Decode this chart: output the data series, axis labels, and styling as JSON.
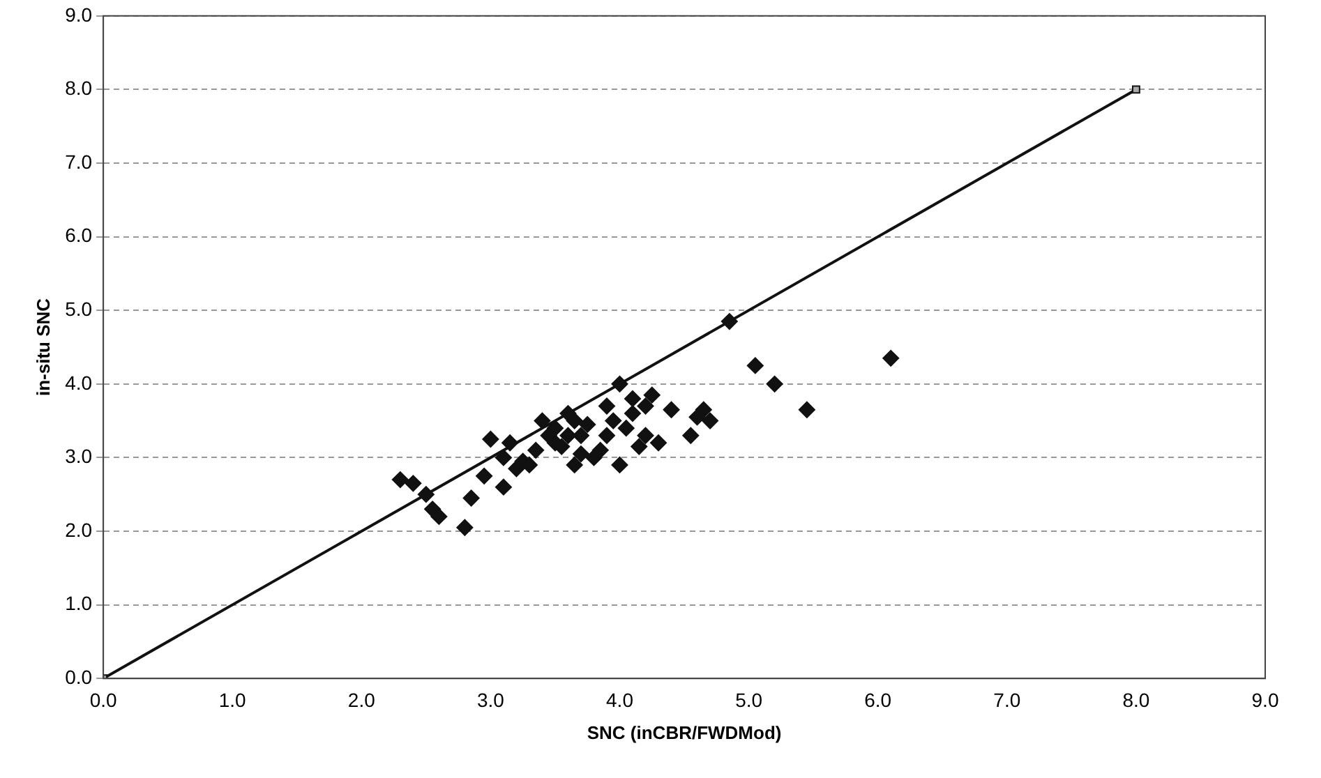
{
  "chart_data": {
    "type": "scatter",
    "xlabel": "SNC (inCBR/FWDMod)",
    "ylabel": "in-situ SNC",
    "xlim": [
      0,
      9
    ],
    "ylim": [
      0,
      9
    ],
    "xticks": [
      {
        "value": 0,
        "label": "0.0"
      },
      {
        "value": 1,
        "label": "1.0"
      },
      {
        "value": 2,
        "label": "2.0"
      },
      {
        "value": 3,
        "label": "3.0"
      },
      {
        "value": 4,
        "label": "4.0"
      },
      {
        "value": 5,
        "label": "5.0"
      },
      {
        "value": 6,
        "label": "6.0"
      },
      {
        "value": 7,
        "label": "7.0"
      },
      {
        "value": 8,
        "label": "8.0"
      },
      {
        "value": 9,
        "label": "9.0"
      }
    ],
    "yticks": [
      {
        "value": 0,
        "label": "0.0"
      },
      {
        "value": 1,
        "label": "1.0"
      },
      {
        "value": 2,
        "label": "2.0"
      },
      {
        "value": 3,
        "label": "3.0"
      },
      {
        "value": 4,
        "label": "4.0"
      },
      {
        "value": 5,
        "label": "5.0"
      },
      {
        "value": 6,
        "label": "6.0"
      },
      {
        "value": 7,
        "label": "7.0"
      },
      {
        "value": 8,
        "label": "8.0"
      },
      {
        "value": 9,
        "label": "9.0"
      }
    ],
    "grid": "y",
    "legend": false,
    "marker": "diamond",
    "series": [
      {
        "color": "#111111",
        "x": [
          2.3,
          2.4,
          2.5,
          2.55,
          2.6,
          2.8,
          2.85,
          2.95,
          3.0,
          3.1,
          3.1,
          3.15,
          3.2,
          3.25,
          3.3,
          3.35,
          3.4,
          3.45,
          3.5,
          3.5,
          3.55,
          3.6,
          3.6,
          3.65,
          3.65,
          3.7,
          3.7,
          3.75,
          3.8,
          3.85,
          3.9,
          3.9,
          3.95,
          4.0,
          4.0,
          4.05,
          4.1,
          4.1,
          4.15,
          4.2,
          4.2,
          4.25,
          4.3,
          4.4,
          4.55,
          4.6,
          4.65,
          4.7,
          4.85,
          5.05,
          5.2,
          5.45,
          6.1
        ],
        "values": [
          2.7,
          2.65,
          2.5,
          2.3,
          2.2,
          2.05,
          2.45,
          2.75,
          3.25,
          2.6,
          3.0,
          3.2,
          2.85,
          2.95,
          2.9,
          3.1,
          3.5,
          3.3,
          3.4,
          3.2,
          3.15,
          3.6,
          3.3,
          2.9,
          3.5,
          3.3,
          3.05,
          3.45,
          3.0,
          3.1,
          3.7,
          3.3,
          3.5,
          4.0,
          2.9,
          3.4,
          3.6,
          3.8,
          3.15,
          3.7,
          3.3,
          3.85,
          3.2,
          3.65,
          3.3,
          3.55,
          3.65,
          3.5,
          4.85,
          4.25,
          4.0,
          3.65,
          4.35
        ]
      },
      {
        "type": "line",
        "color": "#111111",
        "marker": "square",
        "x": [
          0,
          8
        ],
        "values": [
          0,
          8
        ]
      }
    ]
  }
}
